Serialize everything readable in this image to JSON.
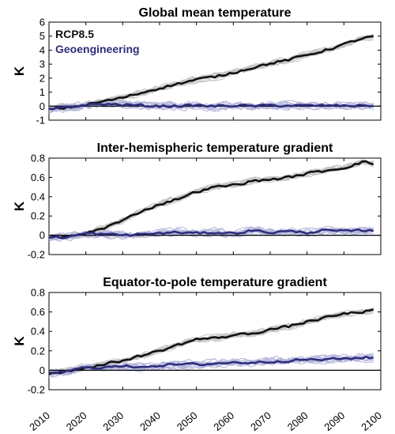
{
  "chart_data": [
    {
      "type": "line",
      "title": "Global mean temperature",
      "ylabel": "K",
      "xlim": [
        2010,
        2100
      ],
      "ylim": [
        -1,
        6
      ],
      "yticks": [
        -1,
        0,
        1,
        2,
        3,
        4,
        5,
        6
      ],
      "zero_line": true,
      "legend": {
        "position": "top-left",
        "entries": [
          {
            "label": "RCP8.5",
            "color": "#111111"
          },
          {
            "label": "Geoengineering",
            "color": "#2e2d7c"
          }
        ]
      },
      "series": [
        {
          "name": "RCP8.5",
          "color": "#111111",
          "x": [
            2008,
            2010,
            2015,
            2020,
            2025,
            2030,
            2035,
            2040,
            2045,
            2050,
            2055,
            2060,
            2065,
            2070,
            2075,
            2080,
            2085,
            2090,
            2095,
            2098
          ],
          "y": [
            -0.3,
            -0.25,
            -0.1,
            0.1,
            0.35,
            0.6,
            0.95,
            1.3,
            1.6,
            1.9,
            2.1,
            2.4,
            2.75,
            3.05,
            3.3,
            3.65,
            4.0,
            4.4,
            4.85,
            4.95
          ]
        },
        {
          "name": "Geoengineering",
          "color": "#2e2d7c",
          "x": [
            2008,
            2010,
            2015,
            2020,
            2025,
            2030,
            2035,
            2040,
            2045,
            2050,
            2055,
            2060,
            2065,
            2070,
            2075,
            2080,
            2085,
            2090,
            2095,
            2098
          ],
          "y": [
            -0.3,
            -0.25,
            -0.1,
            0.1,
            0.15,
            0.1,
            0.05,
            0.0,
            0.02,
            0.05,
            0.0,
            0.05,
            0.0,
            0.05,
            0.05,
            0.02,
            0.05,
            0.02,
            0.05,
            0.05
          ]
        }
      ]
    },
    {
      "type": "line",
      "title": "Inter-hemispheric temperature gradient",
      "ylabel": "K",
      "xlim": [
        2010,
        2100
      ],
      "ylim": [
        -0.2,
        0.8
      ],
      "yticks": [
        -0.2,
        0,
        0.2,
        0.4,
        0.6,
        0.8
      ],
      "zero_line": true,
      "series": [
        {
          "name": "RCP8.5",
          "color": "#111111",
          "x": [
            2008,
            2010,
            2015,
            2020,
            2025,
            2030,
            2035,
            2040,
            2045,
            2050,
            2055,
            2060,
            2065,
            2070,
            2075,
            2080,
            2085,
            2090,
            2095,
            2098
          ],
          "y": [
            -0.02,
            -0.02,
            -0.02,
            0.02,
            0.08,
            0.15,
            0.25,
            0.32,
            0.38,
            0.45,
            0.5,
            0.52,
            0.56,
            0.58,
            0.6,
            0.64,
            0.67,
            0.7,
            0.76,
            0.74
          ]
        },
        {
          "name": "Geoengineering",
          "color": "#2e2d7c",
          "x": [
            2008,
            2010,
            2015,
            2020,
            2025,
            2030,
            2035,
            2040,
            2045,
            2050,
            2055,
            2060,
            2065,
            2070,
            2075,
            2080,
            2085,
            2090,
            2095,
            2098
          ],
          "y": [
            -0.02,
            -0.02,
            -0.02,
            0.02,
            0.01,
            0.0,
            0.01,
            0.02,
            0.03,
            0.02,
            0.03,
            0.02,
            0.05,
            0.03,
            0.04,
            0.03,
            0.05,
            0.04,
            0.05,
            0.05
          ]
        }
      ]
    },
    {
      "type": "line",
      "title": "Equator-to-pole temperature gradient",
      "ylabel": "K",
      "xlabel": "",
      "xlim": [
        2010,
        2100
      ],
      "xticks": [
        2010,
        2020,
        2030,
        2040,
        2050,
        2060,
        2070,
        2080,
        2090,
        2100
      ],
      "ylim": [
        -0.2,
        0.8
      ],
      "yticks": [
        -0.2,
        0,
        0.2,
        0.4,
        0.6,
        0.8
      ],
      "zero_line": true,
      "series": [
        {
          "name": "RCP8.5",
          "color": "#111111",
          "x": [
            2008,
            2010,
            2015,
            2020,
            2025,
            2030,
            2035,
            2040,
            2045,
            2050,
            2055,
            2060,
            2065,
            2070,
            2075,
            2080,
            2085,
            2090,
            2095,
            2098
          ],
          "y": [
            -0.05,
            -0.03,
            -0.01,
            0.03,
            0.06,
            0.1,
            0.15,
            0.2,
            0.26,
            0.32,
            0.33,
            0.36,
            0.38,
            0.42,
            0.45,
            0.5,
            0.54,
            0.58,
            0.6,
            0.62
          ]
        },
        {
          "name": "Geoengineering",
          "color": "#2e2d7c",
          "x": [
            2008,
            2010,
            2015,
            2020,
            2025,
            2030,
            2035,
            2040,
            2045,
            2050,
            2055,
            2060,
            2065,
            2070,
            2075,
            2080,
            2085,
            2090,
            2095,
            2098
          ],
          "y": [
            -0.05,
            -0.03,
            -0.01,
            0.03,
            0.03,
            0.04,
            0.04,
            0.05,
            0.06,
            0.06,
            0.07,
            0.08,
            0.08,
            0.09,
            0.1,
            0.11,
            0.11,
            0.12,
            0.13,
            0.13
          ]
        }
      ]
    }
  ],
  "colors": {
    "rcp_main": "#111111",
    "rcp_ensemble": "#c4c4c4",
    "geo_main": "#2e2d7c",
    "geo_ensemble": "#b3b5db"
  }
}
